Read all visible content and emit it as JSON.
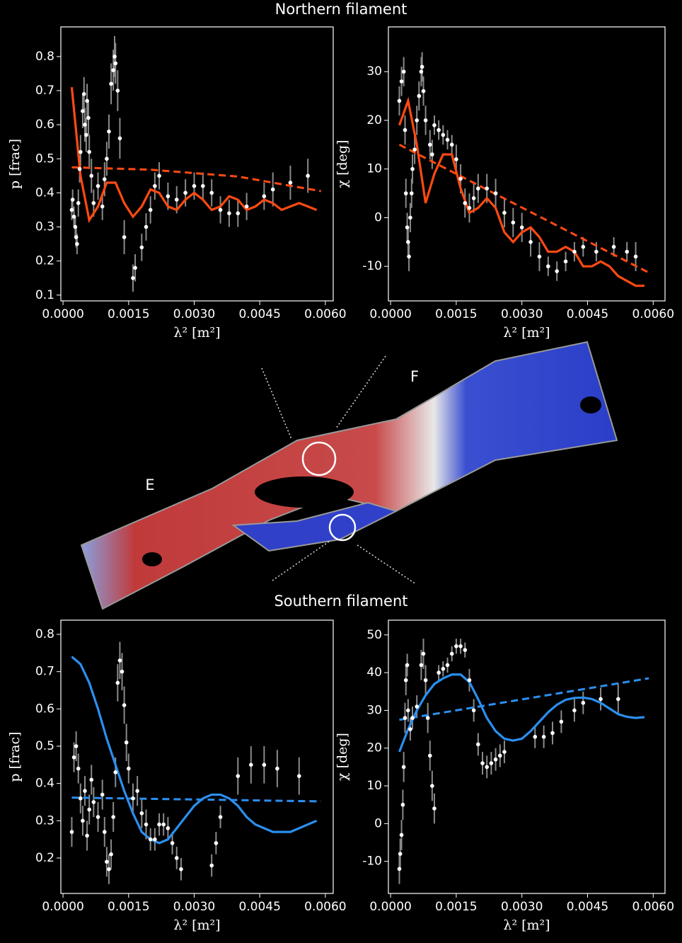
{
  "annotations": {
    "north": "Northern filament",
    "south": "Southern filament",
    "east": "E",
    "flank": "F"
  },
  "chart_data": [
    {
      "type": "scatter",
      "xlabel": "λ² [m²]",
      "ylabel": "p [frac]",
      "xlim": [
        -5e-05,
        0.00618
      ],
      "ylim": [
        0.083,
        0.887
      ],
      "xticks": [
        {
          "value": 0,
          "label": "0.0000"
        },
        {
          "value": 0.0015,
          "label": "0.0015"
        },
        {
          "value": 0.003,
          "label": "0.0030"
        },
        {
          "value": 0.0045,
          "label": "0.0045"
        },
        {
          "value": 0.006,
          "label": "0.0060"
        }
      ],
      "yticks": [
        0.1,
        0.2,
        0.3,
        0.4,
        0.5,
        0.6,
        0.7,
        0.8
      ],
      "points": {
        "color": "#ffffff",
        "error_color": "#8a8a8a",
        "x": [
          0.0002,
          0.00022,
          0.00025,
          0.00028,
          0.0003,
          0.00032,
          0.00035,
          0.00038,
          0.0004,
          0.00045,
          0.00048,
          0.0005,
          0.00053,
          0.00055,
          0.00058,
          0.0006,
          0.00065,
          0.0007,
          0.0008,
          0.0009,
          0.00095,
          0.001,
          0.00105,
          0.0011,
          0.00115,
          0.00118,
          0.0012,
          0.00125,
          0.0013,
          0.0014,
          0.0016,
          0.00165,
          0.0018,
          0.0019,
          0.002,
          0.0021,
          0.0022,
          0.0024,
          0.0026,
          0.0028,
          0.003,
          0.0032,
          0.0034,
          0.0036,
          0.0038,
          0.004,
          0.0042,
          0.0046,
          0.0048,
          0.0052,
          0.0056
        ],
        "values": [
          0.35,
          0.38,
          0.33,
          0.3,
          0.27,
          0.25,
          0.37,
          0.47,
          0.52,
          0.64,
          0.69,
          0.6,
          0.57,
          0.67,
          0.62,
          0.52,
          0.45,
          0.37,
          0.42,
          0.36,
          0.44,
          0.5,
          0.58,
          0.72,
          0.76,
          0.8,
          0.78,
          0.7,
          0.56,
          0.27,
          0.15,
          0.18,
          0.24,
          0.3,
          0.35,
          0.42,
          0.45,
          0.39,
          0.38,
          0.4,
          0.42,
          0.42,
          0.4,
          0.35,
          0.34,
          0.34,
          0.36,
          0.39,
          0.41,
          0.43,
          0.45
        ],
        "errors": [
          0.03,
          0.03,
          0.03,
          0.03,
          0.03,
          0.03,
          0.04,
          0.04,
          0.05,
          0.05,
          0.05,
          0.05,
          0.05,
          0.05,
          0.05,
          0.05,
          0.05,
          0.04,
          0.04,
          0.04,
          0.05,
          0.05,
          0.05,
          0.06,
          0.06,
          0.06,
          0.06,
          0.06,
          0.06,
          0.05,
          0.04,
          0.04,
          0.04,
          0.04,
          0.04,
          0.04,
          0.04,
          0.04,
          0.04,
          0.04,
          0.04,
          0.04,
          0.04,
          0.04,
          0.04,
          0.04,
          0.04,
          0.04,
          0.05,
          0.05,
          0.05
        ]
      },
      "lines": [
        {
          "color": "#ff4a12",
          "style": "solid",
          "x": [
            0.0002,
            0.0004,
            0.0006,
            0.0008,
            0.001,
            0.0012,
            0.0014,
            0.0016,
            0.0018,
            0.002,
            0.0022,
            0.0024,
            0.0026,
            0.0028,
            0.003,
            0.0032,
            0.0034,
            0.0036,
            0.0038,
            0.004,
            0.0042,
            0.0044,
            0.0046,
            0.0048,
            0.005,
            0.0052,
            0.0054,
            0.0056,
            0.0058
          ],
          "values": [
            0.71,
            0.45,
            0.32,
            0.36,
            0.43,
            0.43,
            0.37,
            0.33,
            0.36,
            0.41,
            0.4,
            0.36,
            0.35,
            0.38,
            0.4,
            0.38,
            0.35,
            0.36,
            0.39,
            0.38,
            0.35,
            0.36,
            0.38,
            0.37,
            0.35,
            0.36,
            0.37,
            0.36,
            0.35
          ]
        },
        {
          "color": "#ff4a12",
          "style": "dashed",
          "x": [
            0.0002,
            0.002,
            0.004,
            0.0059
          ],
          "values": [
            0.475,
            0.468,
            0.448,
            0.405
          ]
        }
      ]
    },
    {
      "type": "scatter",
      "xlabel": "λ² [m²]",
      "ylabel": "χ [deg]",
      "xlim": [
        -5e-05,
        0.00627
      ],
      "ylim": [
        -17.1,
        39.2
      ],
      "xticks": [
        {
          "value": 0,
          "label": "0.0000"
        },
        {
          "value": 0.0015,
          "label": "0.0015"
        },
        {
          "value": 0.003,
          "label": "0.0030"
        },
        {
          "value": 0.0045,
          "label": "0.0045"
        },
        {
          "value": 0.006,
          "label": "0.0060"
        }
      ],
      "yticks": [
        -10,
        0,
        10,
        20,
        30
      ],
      "points": {
        "color": "#ffffff",
        "error_color": "#8a8a8a",
        "x": [
          0.0002,
          0.00025,
          0.0003,
          0.00033,
          0.00035,
          0.00038,
          0.0004,
          0.00042,
          0.00045,
          0.00048,
          0.0005,
          0.00055,
          0.0006,
          0.00065,
          0.0007,
          0.00072,
          0.00075,
          0.0008,
          0.0009,
          0.00095,
          0.001,
          0.0011,
          0.0012,
          0.0013,
          0.0014,
          0.0015,
          0.0016,
          0.0017,
          0.0018,
          0.0019,
          0.002,
          0.0022,
          0.0024,
          0.0026,
          0.0028,
          0.003,
          0.0032,
          0.0034,
          0.0036,
          0.0038,
          0.004,
          0.0042,
          0.0044,
          0.0047,
          0.0051,
          0.0054,
          0.0056
        ],
        "values": [
          24,
          28,
          30,
          18,
          5,
          -2,
          -5,
          -8,
          0,
          5,
          10,
          14,
          20,
          25,
          30,
          31,
          26,
          20,
          15,
          13,
          19,
          18,
          17,
          16,
          15,
          12,
          8,
          3,
          2,
          4,
          6,
          6,
          5,
          1,
          -1,
          -2,
          -5,
          -8,
          -10,
          -11,
          -9,
          -7,
          -6,
          -7,
          -6,
          -7,
          -8
        ],
        "errors": [
          3,
          3,
          3,
          3,
          3,
          3,
          3,
          3,
          3,
          3,
          3,
          3,
          3,
          3,
          3,
          3,
          3,
          3,
          3,
          3,
          2,
          2,
          2,
          2,
          2,
          3,
          3,
          3,
          3,
          3,
          3,
          3,
          3,
          3,
          3,
          3,
          3,
          3,
          2,
          2,
          2,
          2,
          2,
          2,
          2,
          2,
          3
        ]
      },
      "lines": [
        {
          "color": "#ff4a12",
          "style": "solid",
          "x": [
            0.0002,
            0.0004,
            0.0006,
            0.0008,
            0.001,
            0.0012,
            0.0014,
            0.0016,
            0.0018,
            0.002,
            0.0022,
            0.0024,
            0.0026,
            0.0028,
            0.003,
            0.0032,
            0.0034,
            0.0036,
            0.0038,
            0.004,
            0.0042,
            0.0044,
            0.0046,
            0.0048,
            0.005,
            0.0052,
            0.0054,
            0.0056,
            0.0058
          ],
          "values": [
            19,
            24,
            15,
            3,
            9,
            13,
            13,
            6,
            1,
            2,
            4,
            2,
            -3,
            -5,
            -3,
            -2,
            -4,
            -7,
            -7,
            -6,
            -7,
            -10,
            -10,
            -9,
            -10,
            -12,
            -13,
            -14,
            -14
          ]
        },
        {
          "color": "#ff4a12",
          "style": "dashed",
          "x": [
            0.0002,
            0.0059
          ],
          "values": [
            15,
            -11.3
          ]
        }
      ]
    },
    {
      "type": "scatter",
      "xlabel": "λ² [m²]",
      "ylabel": "p [frac]",
      "xlim": [
        -5e-05,
        0.00618
      ],
      "ylim": [
        0.105,
        0.838
      ],
      "xticks": [
        {
          "value": 0,
          "label": "0.0000"
        },
        {
          "value": 0.0015,
          "label": "0.0015"
        },
        {
          "value": 0.003,
          "label": "0.0030"
        },
        {
          "value": 0.0045,
          "label": "0.0045"
        },
        {
          "value": 0.006,
          "label": "0.0060"
        }
      ],
      "yticks": [
        0.2,
        0.3,
        0.4,
        0.5,
        0.6,
        0.7,
        0.8
      ],
      "points": {
        "color": "#ffffff",
        "error_color": "#8a8a8a",
        "x": [
          0.0002,
          0.00025,
          0.0003,
          0.00035,
          0.0004,
          0.00045,
          0.0005,
          0.00055,
          0.0006,
          0.00065,
          0.0007,
          0.0008,
          0.0009,
          0.00095,
          0.001,
          0.00105,
          0.0011,
          0.00115,
          0.0012,
          0.00125,
          0.0013,
          0.00135,
          0.0014,
          0.00145,
          0.0015,
          0.0016,
          0.0017,
          0.0018,
          0.0019,
          0.002,
          0.0021,
          0.0022,
          0.0023,
          0.0024,
          0.0025,
          0.0026,
          0.0027,
          0.0034,
          0.0035,
          0.0036,
          0.004,
          0.0043,
          0.0046,
          0.0049,
          0.0054
        ],
        "values": [
          0.27,
          0.47,
          0.5,
          0.44,
          0.36,
          0.3,
          0.38,
          0.26,
          0.33,
          0.41,
          0.35,
          0.31,
          0.37,
          0.27,
          0.19,
          0.17,
          0.21,
          0.31,
          0.43,
          0.67,
          0.73,
          0.7,
          0.61,
          0.51,
          0.44,
          0.36,
          0.38,
          0.32,
          0.29,
          0.25,
          0.25,
          0.29,
          0.29,
          0.28,
          0.24,
          0.2,
          0.17,
          0.18,
          0.24,
          0.31,
          0.42,
          0.45,
          0.45,
          0.44,
          0.42
        ],
        "errors": [
          0.04,
          0.04,
          0.04,
          0.04,
          0.04,
          0.04,
          0.04,
          0.04,
          0.04,
          0.04,
          0.04,
          0.04,
          0.04,
          0.04,
          0.04,
          0.04,
          0.04,
          0.04,
          0.04,
          0.05,
          0.05,
          0.05,
          0.05,
          0.05,
          0.04,
          0.04,
          0.04,
          0.04,
          0.04,
          0.03,
          0.03,
          0.03,
          0.03,
          0.03,
          0.03,
          0.03,
          0.03,
          0.03,
          0.03,
          0.03,
          0.05,
          0.05,
          0.05,
          0.05,
          0.05
        ]
      },
      "lines": [
        {
          "color": "#2b8fef",
          "style": "solid",
          "x": [
            0.0002,
            0.0004,
            0.0006,
            0.0008,
            0.001,
            0.0012,
            0.0014,
            0.0016,
            0.0018,
            0.002,
            0.0022,
            0.0024,
            0.0026,
            0.0028,
            0.003,
            0.0032,
            0.0034,
            0.0036,
            0.0038,
            0.004,
            0.0042,
            0.0044,
            0.0046,
            0.0048,
            0.005,
            0.0052,
            0.0054,
            0.0056,
            0.0058
          ],
          "values": [
            0.74,
            0.72,
            0.67,
            0.6,
            0.52,
            0.45,
            0.38,
            0.32,
            0.27,
            0.25,
            0.24,
            0.25,
            0.28,
            0.31,
            0.34,
            0.36,
            0.37,
            0.37,
            0.36,
            0.34,
            0.31,
            0.29,
            0.28,
            0.27,
            0.27,
            0.27,
            0.28,
            0.29,
            0.3
          ]
        },
        {
          "color": "#2b8fef",
          "style": "dashed",
          "x": [
            0.0002,
            0.0059
          ],
          "values": [
            0.362,
            0.352
          ]
        }
      ]
    },
    {
      "type": "scatter",
      "xlabel": "λ² [m²]",
      "ylabel": "χ [deg]",
      "xlim": [
        -5e-05,
        0.00627
      ],
      "ylim": [
        -18.5,
        53.9
      ],
      "xticks": [
        {
          "value": 0,
          "label": "0.0000"
        },
        {
          "value": 0.0015,
          "label": "0.0015"
        },
        {
          "value": 0.003,
          "label": "0.0030"
        },
        {
          "value": 0.0045,
          "label": "0.0045"
        },
        {
          "value": 0.006,
          "label": "0.0060"
        }
      ],
      "yticks": [
        -10,
        0,
        10,
        20,
        30,
        40,
        50
      ],
      "points": {
        "color": "#ffffff",
        "error_color": "#8a8a8a",
        "x": [
          0.0002,
          0.00022,
          0.00025,
          0.00028,
          0.0003,
          0.00033,
          0.00035,
          0.00038,
          0.0004,
          0.00045,
          0.0005,
          0.0006,
          0.0007,
          0.00075,
          0.0008,
          0.00085,
          0.0009,
          0.00095,
          0.001,
          0.0011,
          0.0012,
          0.0013,
          0.0014,
          0.0015,
          0.0016,
          0.0017,
          0.0018,
          0.0019,
          0.002,
          0.0021,
          0.0022,
          0.0023,
          0.0024,
          0.0025,
          0.0026,
          0.0033,
          0.0035,
          0.0037,
          0.0039,
          0.0042,
          0.0044,
          0.0048,
          0.0052
        ],
        "values": [
          -12,
          -8,
          -3,
          5,
          15,
          28,
          38,
          42,
          30,
          25,
          28,
          31,
          42,
          45,
          38,
          28,
          18,
          10,
          4,
          40,
          41,
          42,
          45,
          47,
          47,
          46,
          38,
          30,
          21,
          16,
          15,
          16,
          17,
          18,
          19,
          23,
          23,
          24,
          27,
          30,
          32,
          33,
          33
        ],
        "errors": [
          4,
          4,
          4,
          4,
          4,
          4,
          4,
          3,
          3,
          3,
          3,
          3,
          4,
          4,
          4,
          4,
          4,
          4,
          4,
          2,
          2,
          2,
          2,
          2,
          2,
          2,
          3,
          3,
          3,
          3,
          3,
          3,
          3,
          3,
          3,
          3,
          3,
          3,
          3,
          3,
          3,
          3,
          4
        ]
      },
      "lines": [
        {
          "color": "#2b8fef",
          "style": "solid",
          "x": [
            0.0002,
            0.0004,
            0.0006,
            0.0008,
            0.001,
            0.0012,
            0.0014,
            0.0016,
            0.0018,
            0.002,
            0.0022,
            0.0024,
            0.0026,
            0.0028,
            0.003,
            0.0032,
            0.0034,
            0.0036,
            0.0038,
            0.004,
            0.0042,
            0.0044,
            0.0046,
            0.0048,
            0.005,
            0.0052,
            0.0054,
            0.0056,
            0.0058
          ],
          "values": [
            19,
            25,
            30,
            34,
            37,
            38.5,
            39.5,
            39.5,
            37.5,
            33,
            28,
            24.5,
            22.5,
            22,
            22.5,
            24.5,
            27,
            29.5,
            31.5,
            32.8,
            33.3,
            33.4,
            33,
            32,
            30.5,
            29,
            28.3,
            28,
            28.2
          ]
        },
        {
          "color": "#2b8fef",
          "style": "dashed",
          "x": [
            0.0002,
            0.0059
          ],
          "values": [
            27.5,
            38.5
          ]
        }
      ]
    }
  ]
}
